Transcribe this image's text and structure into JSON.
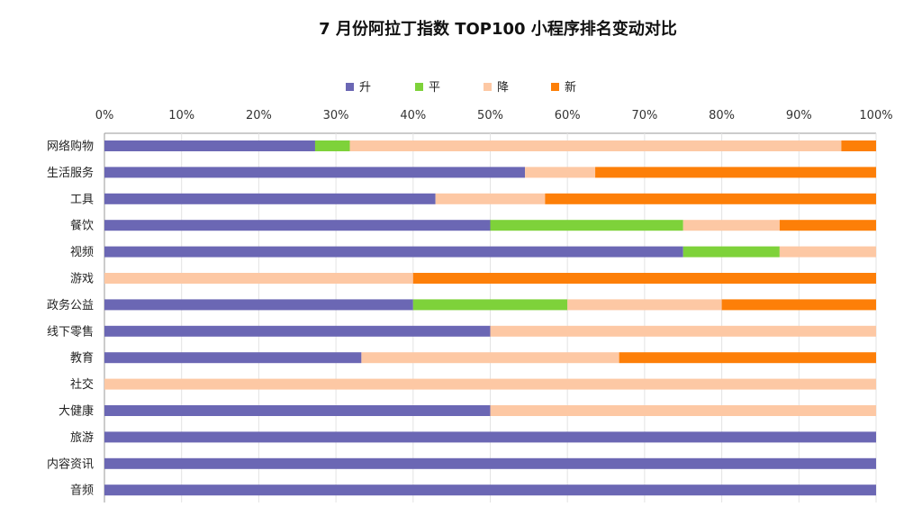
{
  "chart_data": {
    "type": "bar",
    "orientation": "horizontal",
    "stacked": "percent",
    "title": "7 月份阿拉丁指数 TOP100 小程序排名变动对比",
    "xlim": [
      0,
      100
    ],
    "x_ticks": [
      "0%",
      "10%",
      "20%",
      "30%",
      "40%",
      "50%",
      "60%",
      "70%",
      "80%",
      "90%",
      "100%"
    ],
    "grid": true,
    "legend_position": "top",
    "categories": [
      "网络购物",
      "生活服务",
      "工具",
      "餐饮",
      "视频",
      "游戏",
      "政务公益",
      "线下零售",
      "教育",
      "社交",
      "大健康",
      "旅游",
      "内容资讯",
      "音频"
    ],
    "series": [
      {
        "name": "升",
        "color": "#6b67b4",
        "values": [
          27.3,
          54.5,
          42.9,
          50,
          75,
          0,
          40,
          50,
          33.3,
          0,
          50,
          100,
          100,
          100
        ]
      },
      {
        "name": "平",
        "color": "#7ed23a",
        "values": [
          4.5,
          0,
          0,
          25,
          12.5,
          0,
          20,
          0,
          0,
          0,
          0,
          0,
          0,
          0
        ]
      },
      {
        "name": "降",
        "color": "#fdc8a4",
        "values": [
          63.7,
          9.1,
          14.2,
          12.5,
          12.5,
          40,
          20,
          50,
          33.4,
          100,
          50,
          0,
          0,
          0
        ]
      },
      {
        "name": "新",
        "color": "#fd7f08",
        "values": [
          4.5,
          36.4,
          42.9,
          12.5,
          0,
          60,
          20,
          0,
          33.3,
          0,
          0,
          0,
          0,
          0
        ]
      }
    ]
  }
}
